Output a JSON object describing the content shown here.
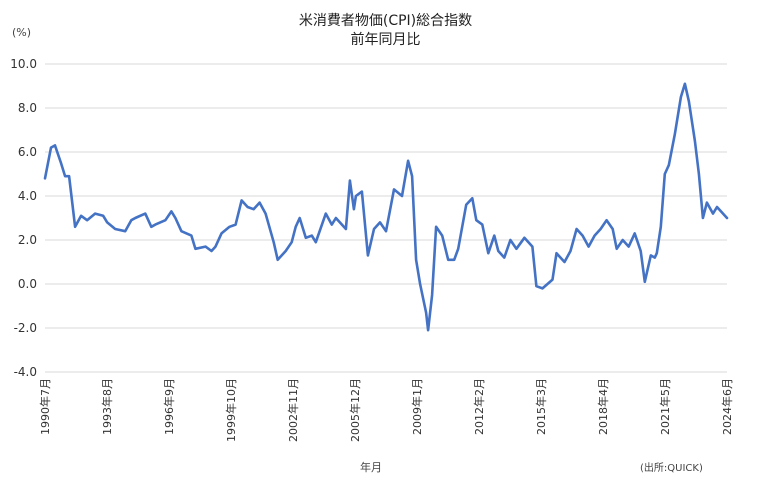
{
  "chart_data": {
    "type": "line",
    "title": "米消費者物価(CPI)総合指数",
    "subtitle": "前年同月比",
    "ylabel": "(%)",
    "xlabel": "年月",
    "source": "(出所:QUICK)",
    "ylim": [
      -4.0,
      10.0
    ],
    "ytick_labels": [
      "10.0",
      "8.0",
      "6.0",
      "4.0",
      "2.0",
      "0.0",
      "-2.0",
      "-4.0"
    ],
    "xtick_labels": [
      "1990年7月",
      "1993年8月",
      "1996年9月",
      "1999年10月",
      "2002年11月",
      "2005年12月",
      "2009年1月",
      "2012年2月",
      "2015年3月",
      "2018年4月",
      "2021年5月",
      "2024年6月"
    ],
    "grid": "horizontal",
    "line_color": "#4472C4",
    "series": [
      {
        "values": [
          [
            1990.5,
            4.8
          ],
          [
            1990.8,
            6.2
          ],
          [
            1991.0,
            6.3
          ],
          [
            1991.3,
            5.5
          ],
          [
            1991.5,
            4.9
          ],
          [
            1991.7,
            4.9
          ],
          [
            1992.0,
            2.6
          ],
          [
            1992.3,
            3.1
          ],
          [
            1992.6,
            2.9
          ],
          [
            1993.0,
            3.2
          ],
          [
            1993.4,
            3.1
          ],
          [
            1993.6,
            2.8
          ],
          [
            1994.0,
            2.5
          ],
          [
            1994.5,
            2.4
          ],
          [
            1994.8,
            2.9
          ],
          [
            1995.0,
            3.0
          ],
          [
            1995.5,
            3.2
          ],
          [
            1995.8,
            2.6
          ],
          [
            1996.0,
            2.7
          ],
          [
            1996.5,
            2.9
          ],
          [
            1996.8,
            3.3
          ],
          [
            1997.0,
            3.0
          ],
          [
            1997.3,
            2.4
          ],
          [
            1997.8,
            2.2
          ],
          [
            1998.0,
            1.6
          ],
          [
            1998.5,
            1.7
          ],
          [
            1998.8,
            1.5
          ],
          [
            1999.0,
            1.7
          ],
          [
            1999.3,
            2.3
          ],
          [
            1999.7,
            2.6
          ],
          [
            2000.0,
            2.7
          ],
          [
            2000.3,
            3.8
          ],
          [
            2000.6,
            3.5
          ],
          [
            2000.9,
            3.4
          ],
          [
            2001.2,
            3.7
          ],
          [
            2001.5,
            3.2
          ],
          [
            2001.9,
            1.9
          ],
          [
            2002.1,
            1.1
          ],
          [
            2002.5,
            1.5
          ],
          [
            2002.8,
            1.9
          ],
          [
            2003.0,
            2.6
          ],
          [
            2003.2,
            3.0
          ],
          [
            2003.5,
            2.1
          ],
          [
            2003.8,
            2.2
          ],
          [
            2004.0,
            1.9
          ],
          [
            2004.5,
            3.2
          ],
          [
            2004.8,
            2.7
          ],
          [
            2005.0,
            3.0
          ],
          [
            2005.5,
            2.5
          ],
          [
            2005.7,
            4.7
          ],
          [
            2005.9,
            3.4
          ],
          [
            2006.0,
            4.0
          ],
          [
            2006.3,
            4.2
          ],
          [
            2006.6,
            1.3
          ],
          [
            2006.9,
            2.5
          ],
          [
            2007.2,
            2.8
          ],
          [
            2007.5,
            2.4
          ],
          [
            2007.9,
            4.3
          ],
          [
            2008.3,
            4.0
          ],
          [
            2008.6,
            5.6
          ],
          [
            2008.8,
            4.9
          ],
          [
            2009.0,
            1.1
          ],
          [
            2009.2,
            0.0
          ],
          [
            2009.5,
            -1.3
          ],
          [
            2009.6,
            -2.1
          ],
          [
            2009.8,
            -0.5
          ],
          [
            2010.0,
            2.6
          ],
          [
            2010.3,
            2.2
          ],
          [
            2010.6,
            1.1
          ],
          [
            2010.9,
            1.1
          ],
          [
            2011.1,
            1.6
          ],
          [
            2011.5,
            3.6
          ],
          [
            2011.8,
            3.9
          ],
          [
            2012.0,
            2.9
          ],
          [
            2012.3,
            2.7
          ],
          [
            2012.6,
            1.4
          ],
          [
            2012.9,
            2.2
          ],
          [
            2013.1,
            1.5
          ],
          [
            2013.4,
            1.2
          ],
          [
            2013.7,
            2.0
          ],
          [
            2014.0,
            1.6
          ],
          [
            2014.4,
            2.1
          ],
          [
            2014.8,
            1.7
          ],
          [
            2015.0,
            -0.1
          ],
          [
            2015.3,
            -0.2
          ],
          [
            2015.8,
            0.2
          ],
          [
            2016.0,
            1.4
          ],
          [
            2016.4,
            1.0
          ],
          [
            2016.7,
            1.5
          ],
          [
            2017.0,
            2.5
          ],
          [
            2017.3,
            2.2
          ],
          [
            2017.6,
            1.7
          ],
          [
            2017.9,
            2.2
          ],
          [
            2018.2,
            2.5
          ],
          [
            2018.5,
            2.9
          ],
          [
            2018.8,
            2.5
          ],
          [
            2019.0,
            1.6
          ],
          [
            2019.3,
            2.0
          ],
          [
            2019.6,
            1.7
          ],
          [
            2019.9,
            2.3
          ],
          [
            2020.2,
            1.5
          ],
          [
            2020.4,
            0.1
          ],
          [
            2020.7,
            1.3
          ],
          [
            2020.9,
            1.2
          ],
          [
            2021.0,
            1.4
          ],
          [
            2021.2,
            2.6
          ],
          [
            2021.4,
            5.0
          ],
          [
            2021.6,
            5.4
          ],
          [
            2021.9,
            6.8
          ],
          [
            2022.2,
            8.5
          ],
          [
            2022.4,
            9.1
          ],
          [
            2022.6,
            8.3
          ],
          [
            2022.9,
            6.5
          ],
          [
            2023.1,
            5.0
          ],
          [
            2023.3,
            3.0
          ],
          [
            2023.5,
            3.7
          ],
          [
            2023.8,
            3.2
          ],
          [
            2024.0,
            3.5
          ],
          [
            2024.5,
            3.0
          ]
        ]
      }
    ]
  }
}
